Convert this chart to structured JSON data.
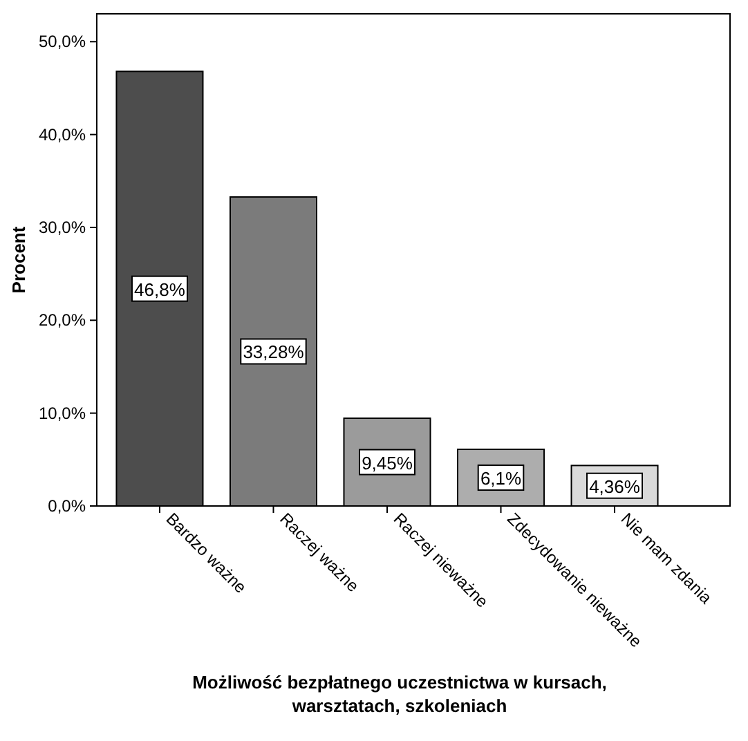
{
  "chart_data": {
    "type": "bar",
    "xlabel": "Możliwość bezpłatnego uczestnictwa w kursach, warsztatach, szkoleniach",
    "ylabel": "Procent",
    "categories": [
      "Bardzo ważne",
      "Raczej ważne",
      "Raczej nieważne",
      "Zdecydowanie nieważne",
      "Nie mam zdania"
    ],
    "values": [
      46.8,
      33.28,
      9.45,
      6.1,
      4.36
    ],
    "colors": [
      "#4d4d4d",
      "#7b7b7b",
      "#9b9b9b",
      "#adadad",
      "#dadada"
    ],
    "value_labels": [
      "46,8%",
      "33,28%",
      "9,45%",
      "6,1%",
      "4,36%"
    ],
    "ylim": [
      0,
      53
    ],
    "yticks": [
      {
        "value": 0,
        "label": "0,0%"
      },
      {
        "value": 10,
        "label": "10,0%"
      },
      {
        "value": 20,
        "label": "20,0%"
      },
      {
        "value": 30,
        "label": "30,0%"
      },
      {
        "value": 40,
        "label": "40,0%"
      },
      {
        "value": 50,
        "label": "50,0%"
      }
    ],
    "grid": false
  }
}
